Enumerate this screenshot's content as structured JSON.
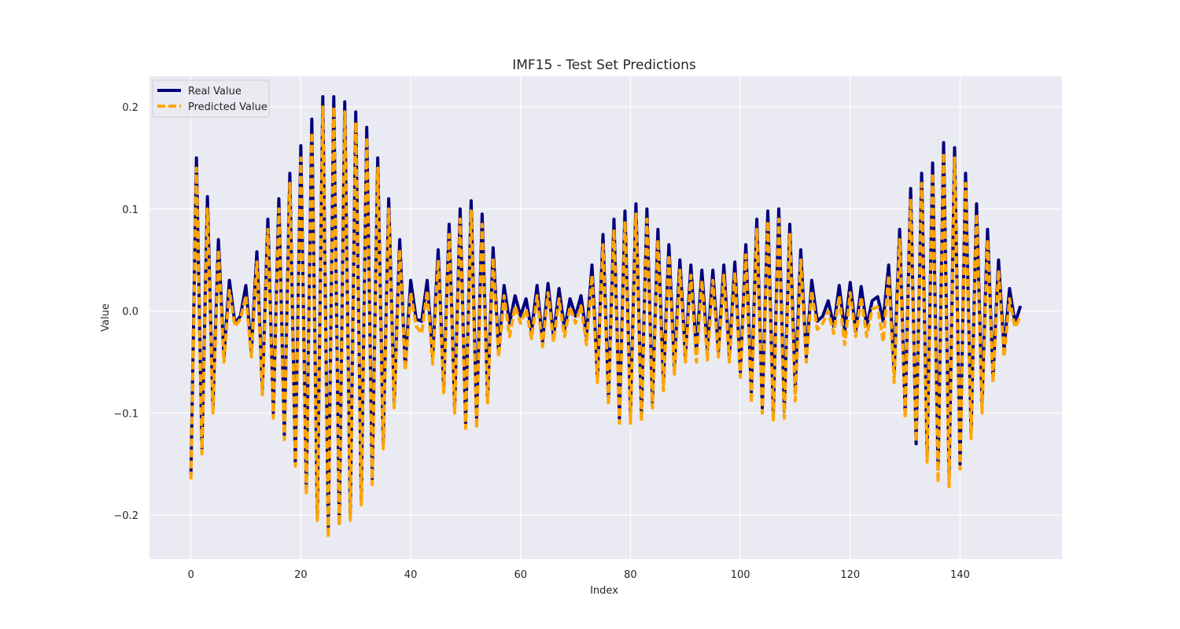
{
  "chart_data": {
    "type": "line",
    "title": "IMF15 - Test Set Predictions",
    "xlabel": "Index",
    "ylabel": "Value",
    "xlim": [
      -7.55,
      158.55
    ],
    "ylim": [
      -0.243,
      0.23
    ],
    "xticks": [
      0,
      20,
      40,
      60,
      80,
      100,
      120,
      140
    ],
    "yticks": [
      -0.2,
      -0.1,
      0.0,
      0.1,
      0.2
    ],
    "ytick_labels": [
      "−0.2",
      "−0.1",
      "0.0",
      "0.1",
      "0.2"
    ],
    "grid": true,
    "legend_position": "top-left",
    "x": [
      0,
      1,
      2,
      3,
      4,
      5,
      6,
      7,
      8,
      9,
      10,
      11,
      12,
      13,
      14,
      15,
      16,
      17,
      18,
      19,
      20,
      21,
      22,
      23,
      24,
      25,
      26,
      27,
      28,
      29,
      30,
      31,
      32,
      33,
      34,
      35,
      36,
      37,
      38,
      39,
      40,
      41,
      42,
      43,
      44,
      45,
      46,
      47,
      48,
      49,
      50,
      51,
      52,
      53,
      54,
      55,
      56,
      57,
      58,
      59,
      60,
      61,
      62,
      63,
      64,
      65,
      66,
      67,
      68,
      69,
      70,
      71,
      72,
      73,
      74,
      75,
      76,
      77,
      78,
      79,
      80,
      81,
      82,
      83,
      84,
      85,
      86,
      87,
      88,
      89,
      90,
      91,
      92,
      93,
      94,
      95,
      96,
      97,
      98,
      99,
      100,
      101,
      102,
      103,
      104,
      105,
      106,
      107,
      108,
      109,
      110,
      111,
      112,
      113,
      114,
      115,
      116,
      117,
      118,
      119,
      120,
      121,
      122,
      123,
      124,
      125,
      126,
      127,
      128,
      129,
      130,
      131,
      132,
      133,
      134,
      135,
      136,
      137,
      138,
      139,
      140,
      141,
      142,
      143,
      144,
      145,
      146,
      147,
      148,
      149,
      150,
      151
    ],
    "series": [
      {
        "name": "Real Value",
        "color": "#00007f",
        "style": "solid",
        "values": [
          -0.16,
          0.15,
          -0.135,
          0.112,
          -0.095,
          0.07,
          -0.045,
          0.03,
          -0.012,
          -0.005,
          0.025,
          -0.04,
          0.058,
          -0.078,
          0.09,
          -0.1,
          0.11,
          -0.122,
          0.135,
          -0.148,
          0.162,
          -0.175,
          0.188,
          -0.2,
          0.21,
          -0.215,
          0.21,
          -0.208,
          0.205,
          -0.2,
          0.195,
          -0.185,
          0.18,
          -0.165,
          0.15,
          -0.13,
          0.11,
          -0.09,
          0.07,
          -0.055,
          0.03,
          -0.008,
          -0.01,
          0.03,
          -0.045,
          0.06,
          -0.075,
          0.085,
          -0.095,
          0.1,
          -0.11,
          0.108,
          -0.105,
          0.095,
          -0.085,
          0.062,
          -0.04,
          0.025,
          -0.012,
          0.015,
          -0.005,
          0.012,
          -0.02,
          0.025,
          -0.03,
          0.027,
          -0.025,
          0.022,
          -0.018,
          0.012,
          -0.005,
          0.015,
          -0.025,
          0.045,
          -0.065,
          0.075,
          -0.085,
          0.09,
          -0.105,
          0.098,
          -0.1,
          0.105,
          -0.102,
          0.1,
          -0.09,
          0.08,
          -0.07,
          0.065,
          -0.055,
          0.05,
          -0.045,
          0.045,
          -0.04,
          0.04,
          -0.038,
          0.04,
          -0.04,
          0.045,
          -0.045,
          0.048,
          -0.06,
          0.065,
          -0.08,
          0.09,
          -0.095,
          0.098,
          -0.1,
          0.1,
          -0.098,
          0.085,
          -0.075,
          0.06,
          -0.045,
          0.03,
          -0.01,
          -0.005,
          0.01,
          -0.015,
          0.025,
          -0.02,
          0.028,
          -0.02,
          0.024,
          -0.015,
          0.01,
          0.014,
          -0.01,
          0.045,
          -0.06,
          0.08,
          -0.1,
          0.12,
          -0.13,
          0.135,
          -0.14,
          0.145,
          -0.155,
          0.165,
          -0.16,
          0.16,
          -0.15,
          0.135,
          -0.12,
          0.105,
          -0.09,
          0.08,
          -0.065,
          0.05,
          -0.038,
          0.022,
          -0.012,
          0.005
        ],
        "legend": "Real Value"
      },
      {
        "name": "Predicted Value",
        "color": "#ffa500",
        "style": "dashed",
        "values": [
          -0.165,
          0.14,
          -0.14,
          0.1,
          -0.1,
          0.06,
          -0.05,
          0.02,
          -0.015,
          -0.008,
          0.015,
          -0.045,
          0.048,
          -0.082,
          0.08,
          -0.105,
          0.1,
          -0.126,
          0.125,
          -0.152,
          0.15,
          -0.18,
          0.175,
          -0.205,
          0.2,
          -0.222,
          0.2,
          -0.21,
          0.195,
          -0.205,
          0.185,
          -0.19,
          0.17,
          -0.17,
          0.14,
          -0.135,
          0.1,
          -0.095,
          0.06,
          -0.058,
          0.018,
          -0.015,
          -0.022,
          0.02,
          -0.052,
          0.05,
          -0.08,
          0.075,
          -0.1,
          0.09,
          -0.115,
          0.098,
          -0.115,
          0.085,
          -0.09,
          0.052,
          -0.045,
          0.015,
          -0.025,
          0.005,
          -0.012,
          0.002,
          -0.027,
          0.015,
          -0.035,
          0.018,
          -0.03,
          0.012,
          -0.025,
          0.004,
          -0.012,
          0.005,
          -0.033,
          0.035,
          -0.07,
          0.065,
          -0.092,
          0.08,
          -0.11,
          0.088,
          -0.11,
          0.095,
          -0.108,
          0.09,
          -0.095,
          0.07,
          -0.078,
          0.055,
          -0.062,
          0.04,
          -0.05,
          0.035,
          -0.05,
          0.03,
          -0.048,
          0.03,
          -0.045,
          0.035,
          -0.05,
          0.038,
          -0.065,
          0.055,
          -0.09,
          0.08,
          -0.1,
          0.088,
          -0.108,
          0.09,
          -0.105,
          0.075,
          -0.088,
          0.05,
          -0.05,
          0.02,
          -0.018,
          -0.012,
          0.0,
          -0.022,
          0.015,
          -0.033,
          0.018,
          -0.025,
          0.014,
          -0.025,
          0.002,
          0.004,
          -0.03,
          0.035,
          -0.07,
          0.07,
          -0.105,
          0.11,
          -0.128,
          0.125,
          -0.148,
          0.135,
          -0.168,
          0.155,
          -0.172,
          0.15,
          -0.155,
          0.125,
          -0.125,
          0.095,
          -0.1,
          0.07,
          -0.07,
          0.04,
          -0.045,
          0.012,
          -0.016,
          -0.005
        ],
        "legend": "Predicted Value"
      }
    ]
  }
}
